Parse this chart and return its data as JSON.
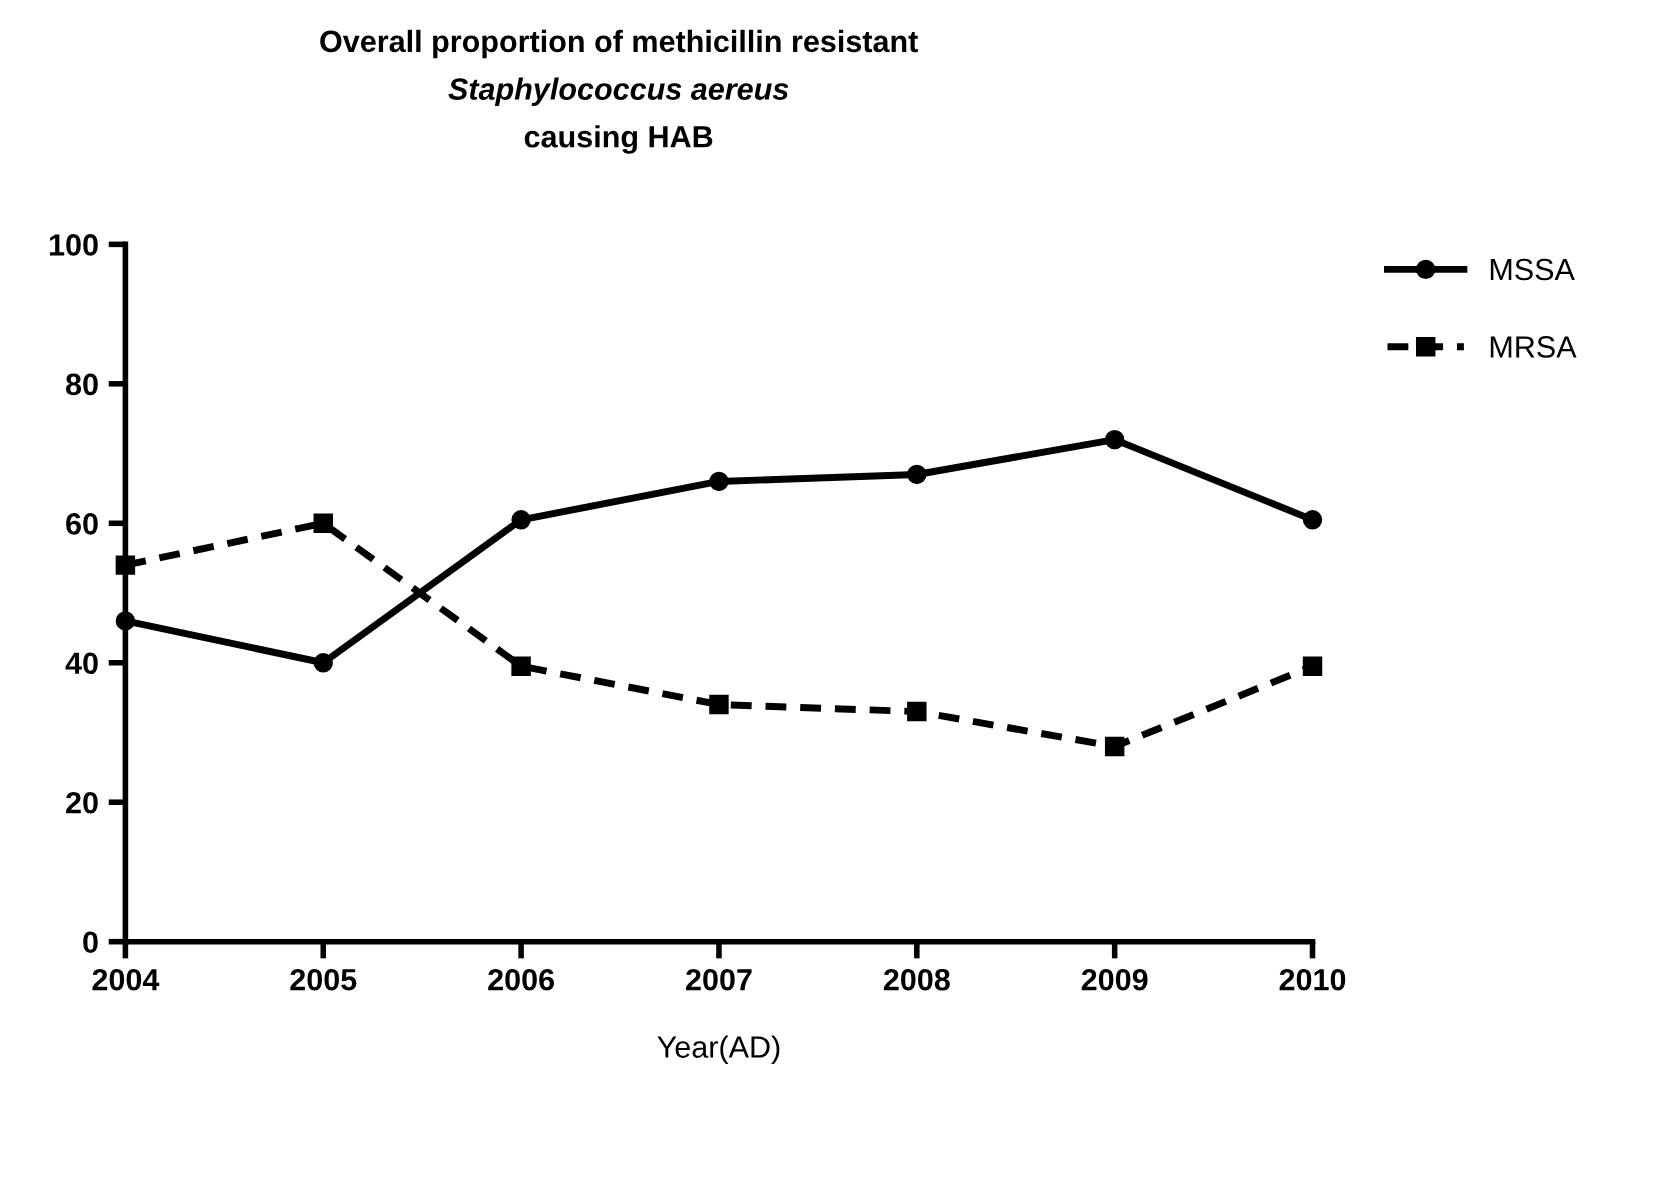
{
  "chart_data": {
    "type": "line",
    "title": "Overall proportion of methicillin resistant\nStaphylococcus aereus\ncausing HAB",
    "xlabel": "Year(AD)",
    "x": [
      2004,
      2005,
      2006,
      2007,
      2008,
      2009,
      2010
    ],
    "series": [
      {
        "name": "MSSA",
        "color": "#000000",
        "marker": "circle",
        "line_style": "solid",
        "values": [
          46,
          40,
          60.5,
          66,
          67,
          72,
          60.5
        ]
      },
      {
        "name": "MRSA",
        "color": "#000000",
        "marker": "square",
        "line_style": "dashed",
        "values": [
          54,
          60,
          39.5,
          34,
          33,
          28,
          39.5
        ]
      }
    ],
    "xlim": [
      2004,
      2010
    ],
    "xticks": [
      2004,
      2005,
      2006,
      2007,
      2008,
      2009,
      2010
    ],
    "ylim": [
      0,
      100
    ],
    "yticks": [
      0,
      20,
      40,
      60,
      80,
      100
    ],
    "grid": false,
    "legend": "top right"
  }
}
